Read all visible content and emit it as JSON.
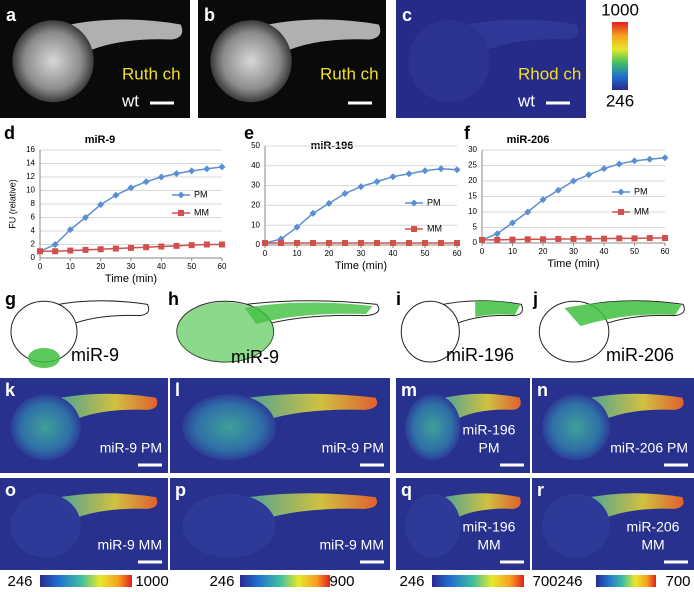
{
  "images_top": [
    {
      "letter": "a",
      "labels": [
        "Ruth ch",
        "wt"
      ]
    },
    {
      "letter": "b",
      "labels": [
        "Ruth ch"
      ]
    },
    {
      "letter": "c",
      "labels": [
        "Rhod ch",
        "wt"
      ]
    }
  ],
  "colorbar_top": {
    "max": 1000,
    "min": 246
  },
  "chart_data": [
    {
      "type": "line",
      "letter": "d",
      "title": "miR-9",
      "y_label": "FU (relative)",
      "x_label": "Time (min)",
      "x": [
        0,
        5,
        10,
        15,
        20,
        25,
        30,
        35,
        40,
        45,
        50,
        55,
        60
      ],
      "xlim": [
        0,
        60
      ],
      "xticks": [
        0,
        10,
        20,
        30,
        40,
        50,
        60
      ],
      "ylim": [
        0,
        16
      ],
      "yticks": [
        0,
        2,
        4,
        6,
        8,
        10,
        12,
        14,
        16
      ],
      "grid": true,
      "series": [
        {
          "name": "PM",
          "color": "#5b8fd0",
          "values": [
            1,
            2,
            4.2,
            6,
            7.9,
            9.3,
            10.4,
            11.3,
            12,
            12.5,
            12.9,
            13.2,
            13.5
          ]
        },
        {
          "name": "MM",
          "color": "#d0504d",
          "values": [
            1,
            1,
            1.1,
            1.2,
            1.3,
            1.4,
            1.5,
            1.6,
            1.7,
            1.8,
            1.9,
            2,
            2
          ]
        }
      ]
    },
    {
      "type": "line",
      "letter": "e",
      "title": "miR-196",
      "x_label": "Time (min)",
      "x": [
        0,
        5,
        10,
        15,
        20,
        25,
        30,
        35,
        40,
        45,
        50,
        55,
        60
      ],
      "xlim": [
        0,
        60
      ],
      "xticks": [
        0,
        10,
        20,
        30,
        40,
        50,
        60
      ],
      "ylim": [
        0,
        50
      ],
      "yticks": [
        0,
        10,
        20,
        30,
        40,
        50
      ],
      "grid": true,
      "series": [
        {
          "name": "PM",
          "color": "#5b8fd0",
          "values": [
            1,
            3,
            9,
            16,
            21,
            26,
            29.5,
            32,
            34.5,
            36,
            37.5,
            38.5,
            38
          ]
        },
        {
          "name": "MM",
          "color": "#d0504d",
          "values": [
            1,
            1,
            1,
            1,
            1,
            1,
            1,
            1,
            1,
            1,
            1,
            1,
            1
          ]
        }
      ]
    },
    {
      "type": "line",
      "letter": "f",
      "title": "miR-206",
      "x_label": "Time (min)",
      "x": [
        0,
        5,
        10,
        15,
        20,
        25,
        30,
        35,
        40,
        45,
        50,
        55,
        60
      ],
      "xlim": [
        0,
        60
      ],
      "xticks": [
        0,
        10,
        20,
        30,
        40,
        50,
        60
      ],
      "ylim": [
        0,
        30
      ],
      "yticks": [
        0,
        5,
        10,
        15,
        20,
        25,
        30
      ],
      "grid": true,
      "series": [
        {
          "name": "PM",
          "color": "#5b8fd0",
          "values": [
            1,
            3,
            6.5,
            10,
            14,
            17,
            20,
            22,
            24,
            25.5,
            26.5,
            27,
            27.5
          ]
        },
        {
          "name": "MM",
          "color": "#d0504d",
          "values": [
            1,
            1,
            1.1,
            1.2,
            1.2,
            1.3,
            1.3,
            1.4,
            1.4,
            1.5,
            1.5,
            1.6,
            1.6
          ]
        }
      ]
    }
  ],
  "schematics": [
    {
      "letter": "g",
      "label": "miR-9"
    },
    {
      "letter": "h",
      "label": "miR-9"
    },
    {
      "letter": "i",
      "label": "miR-196"
    },
    {
      "letter": "j",
      "label": "miR-206"
    }
  ],
  "images_pm": [
    {
      "letter": "k",
      "labels": [
        "miR-9 PM"
      ]
    },
    {
      "letter": "l",
      "labels": [
        "miR-9 PM"
      ]
    },
    {
      "letter": "m",
      "labels": [
        "miR-196",
        "PM"
      ]
    },
    {
      "letter": "n",
      "labels": [
        "miR-206 PM"
      ]
    }
  ],
  "images_mm": [
    {
      "letter": "o",
      "labels": [
        "miR-9 MM"
      ]
    },
    {
      "letter": "p",
      "labels": [
        "miR-9 MM"
      ]
    },
    {
      "letter": "q",
      "labels": [
        "miR-196",
        "MM"
      ]
    },
    {
      "letter": "r",
      "labels": [
        "miR-206",
        "MM"
      ]
    }
  ],
  "colorbars_bottom": [
    {
      "min": 246,
      "max": 1000
    },
    {
      "min": 246,
      "max": 900
    },
    {
      "min": 246,
      "max": 700
    },
    {
      "min": 246,
      "max": 700
    }
  ]
}
